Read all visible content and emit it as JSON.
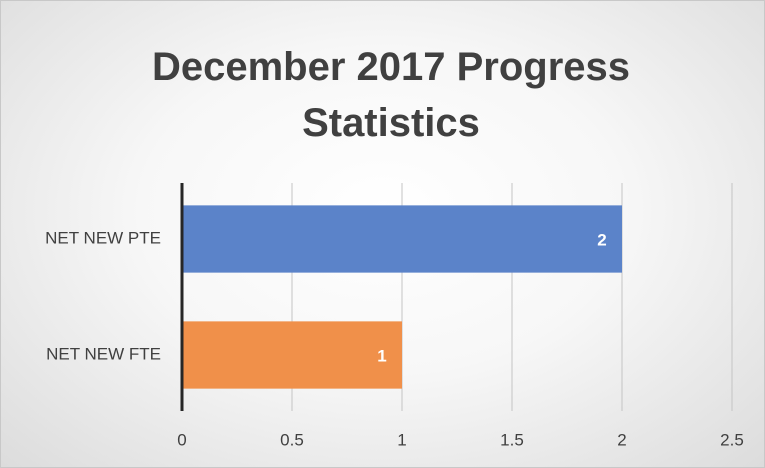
{
  "chart_data": {
    "type": "bar",
    "orientation": "horizontal",
    "title": "December 2017 Progress Statistics",
    "categories": [
      "NET NEW PTE",
      "NET NEW FTE"
    ],
    "values": [
      2,
      1
    ],
    "colors": [
      "#5b83c9",
      "#f0904a"
    ],
    "xlim": [
      0,
      2.5
    ],
    "xticks": [
      0,
      0.5,
      1,
      1.5,
      2,
      2.5
    ],
    "grid": true,
    "data_labels": true
  }
}
